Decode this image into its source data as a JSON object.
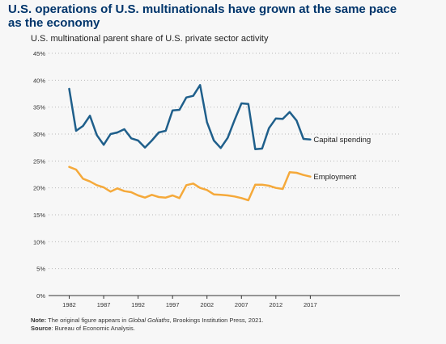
{
  "title": "U.S. operations of U.S. multinationals have grown at the same pace as the economy",
  "subtitle": "U.S. multinational parent share of U.S. private sector activity",
  "notes": {
    "note_label": "Note:",
    "note_pre": " The original figure appears in ",
    "note_italic": "Global Goliaths",
    "note_post": ", Brookings Institution Press, 2021.",
    "source_label": "Source",
    "source_text": ": Bureau of Economic Analysis."
  },
  "colors": {
    "capital": "#1f5f8b",
    "employment": "#f5a93a",
    "grid": "#b8b8b8",
    "axis": "#333333",
    "title": "#00356b"
  },
  "chart_data": {
    "type": "line",
    "xlim": [
      1979,
      2030
    ],
    "ylim": [
      0,
      45
    ],
    "y_ticks": [
      0,
      5,
      10,
      15,
      20,
      25,
      30,
      35,
      40,
      45
    ],
    "y_tick_labels": [
      "0%",
      "5%",
      "10%",
      "15%",
      "20%",
      "25%",
      "30%",
      "35%",
      "40%",
      "45%"
    ],
    "x_ticks": [
      1982,
      1987,
      1992,
      1997,
      2002,
      2007,
      2012,
      2017
    ],
    "x_tick_labels": [
      "1982",
      "1987",
      "1992",
      "1997",
      "2002",
      "2007",
      "2012",
      "2017"
    ],
    "grid": "horizontal dotted",
    "series": [
      {
        "name": "Capital spending",
        "x": [
          1982,
          1983,
          1984,
          1985,
          1986,
          1987,
          1988,
          1989,
          1990,
          1991,
          1992,
          1993,
          1994,
          1995,
          1996,
          1997,
          1998,
          1999,
          2000,
          2001,
          2002,
          2003,
          2004,
          2005,
          2006,
          2007,
          2008,
          2009,
          2010,
          2011,
          2012,
          2013,
          2014,
          2015,
          2016,
          2017
        ],
        "values": [
          38.4,
          30.6,
          31.5,
          33.4,
          29.8,
          28.0,
          30.0,
          30.3,
          30.9,
          29.2,
          28.8,
          27.5,
          28.8,
          30.3,
          30.6,
          34.4,
          34.5,
          36.8,
          37.1,
          39.1,
          32.2,
          28.8,
          27.4,
          29.3,
          32.6,
          35.7,
          35.6,
          27.2,
          27.3,
          31.1,
          32.9,
          32.8,
          34.1,
          32.5,
          29.1,
          29.0
        ]
      },
      {
        "name": "Employment",
        "x": [
          1982,
          1983,
          1984,
          1985,
          1986,
          1987,
          1988,
          1989,
          1990,
          1991,
          1992,
          1993,
          1994,
          1995,
          1996,
          1997,
          1998,
          1999,
          2000,
          2001,
          2002,
          2003,
          2004,
          2005,
          2006,
          2007,
          2008,
          2009,
          2010,
          2011,
          2012,
          2013,
          2014,
          2015,
          2016,
          2017
        ],
        "values": [
          23.9,
          23.4,
          21.7,
          21.2,
          20.5,
          20.1,
          19.3,
          19.9,
          19.4,
          19.2,
          18.6,
          18.2,
          18.7,
          18.3,
          18.2,
          18.6,
          18.1,
          20.5,
          20.8,
          20.0,
          19.6,
          18.8,
          18.7,
          18.6,
          18.4,
          18.1,
          17.7,
          20.6,
          20.6,
          20.4,
          20.0,
          19.8,
          22.9,
          22.8,
          22.4,
          22.1
        ]
      }
    ]
  }
}
